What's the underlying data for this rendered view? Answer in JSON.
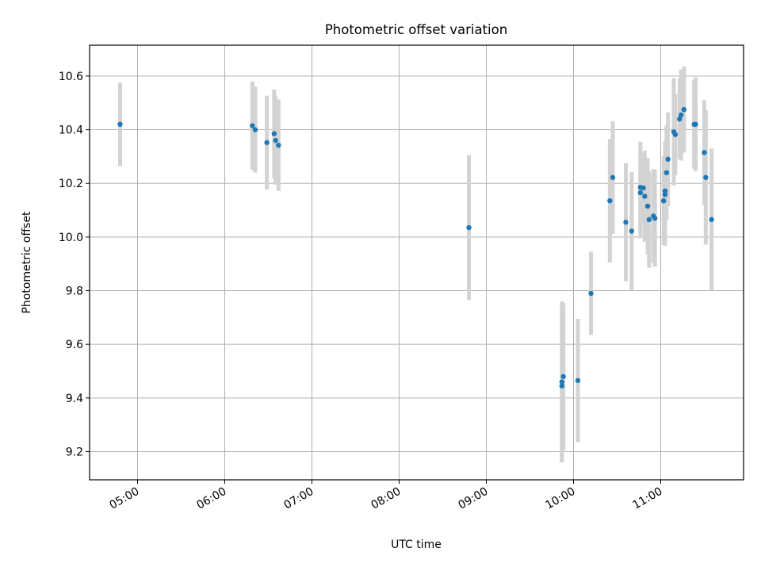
{
  "chart_data": {
    "type": "scatter",
    "title": "Photometric offset variation",
    "xlabel": "UTC time",
    "ylabel": "Photometric offset",
    "x_unit": "UTC time (HH:MM)",
    "xlim": [
      "04:27",
      "11:57"
    ],
    "ylim": [
      9.095,
      10.715
    ],
    "x_ticks": [
      "05:00",
      "06:00",
      "07:00",
      "08:00",
      "09:00",
      "10:00",
      "11:00"
    ],
    "y_ticks": [
      "9.2",
      "9.4",
      "9.6",
      "9.8",
      "10.0",
      "10.2",
      "10.4",
      "10.6"
    ],
    "grid": true,
    "colors": {
      "marker": "#1f77b4",
      "errorbar": "#d3d3d3",
      "grid": "#b0b0b0"
    },
    "points": [
      {
        "x": "04:48",
        "y": 10.42,
        "err": 0.155
      },
      {
        "x": "06:19",
        "y": 10.415,
        "err": 0.165
      },
      {
        "x": "06:21",
        "y": 10.4,
        "err": 0.16
      },
      {
        "x": "06:29",
        "y": 10.352,
        "err": 0.175
      },
      {
        "x": "06:34",
        "y": 10.385,
        "err": 0.165
      },
      {
        "x": "06:35",
        "y": 10.36,
        "err": 0.165
      },
      {
        "x": "06:37",
        "y": 10.342,
        "err": 0.17
      },
      {
        "x": "08:48",
        "y": 10.035,
        "err": 0.27
      },
      {
        "x": "09:52",
        "y": 9.445,
        "err": 0.28
      },
      {
        "x": "09:52",
        "y": 9.46,
        "err": 0.3
      },
      {
        "x": "09:53",
        "y": 9.48,
        "err": 0.275
      },
      {
        "x": "10:03",
        "y": 9.465,
        "err": 0.23
      },
      {
        "x": "10:12",
        "y": 9.79,
        "err": 0.155
      },
      {
        "x": "10:25",
        "y": 10.135,
        "err": 0.23
      },
      {
        "x": "10:27",
        "y": 10.222,
        "err": 0.21
      },
      {
        "x": "10:36",
        "y": 10.055,
        "err": 0.22
      },
      {
        "x": "10:40",
        "y": 10.022,
        "err": 0.22
      },
      {
        "x": "10:46",
        "y": 10.185,
        "err": 0.17
      },
      {
        "x": "10:46",
        "y": 10.165,
        "err": 0.17
      },
      {
        "x": "10:48",
        "y": 10.183,
        "err": 0.13
      },
      {
        "x": "10:49",
        "y": 10.152,
        "err": 0.17
      },
      {
        "x": "10:51",
        "y": 10.115,
        "err": 0.18
      },
      {
        "x": "10:52",
        "y": 10.065,
        "err": 0.18
      },
      {
        "x": "10:55",
        "y": 10.078,
        "err": 0.175
      },
      {
        "x": "10:56",
        "y": 10.07,
        "err": 0.18
      },
      {
        "x": "11:02",
        "y": 10.135,
        "err": 0.165
      },
      {
        "x": "11:03",
        "y": 10.158,
        "err": 0.19
      },
      {
        "x": "11:03",
        "y": 10.172,
        "err": 0.185
      },
      {
        "x": "11:04",
        "y": 10.24,
        "err": 0.175
      },
      {
        "x": "11:05",
        "y": 10.29,
        "err": 0.175
      },
      {
        "x": "11:09",
        "y": 10.392,
        "err": 0.2
      },
      {
        "x": "11:10",
        "y": 10.382,
        "err": 0.15
      },
      {
        "x": "11:13",
        "y": 10.44,
        "err": 0.15
      },
      {
        "x": "11:14",
        "y": 10.455,
        "err": 0.17
      },
      {
        "x": "11:16",
        "y": 10.475,
        "err": 0.16
      },
      {
        "x": "11:23",
        "y": 10.42,
        "err": 0.165
      },
      {
        "x": "11:24",
        "y": 10.42,
        "err": 0.175
      },
      {
        "x": "11:30",
        "y": 10.315,
        "err": 0.195
      },
      {
        "x": "11:31",
        "y": 10.222,
        "err": 0.25
      },
      {
        "x": "11:35",
        "y": 10.065,
        "err": 0.265
      }
    ]
  }
}
